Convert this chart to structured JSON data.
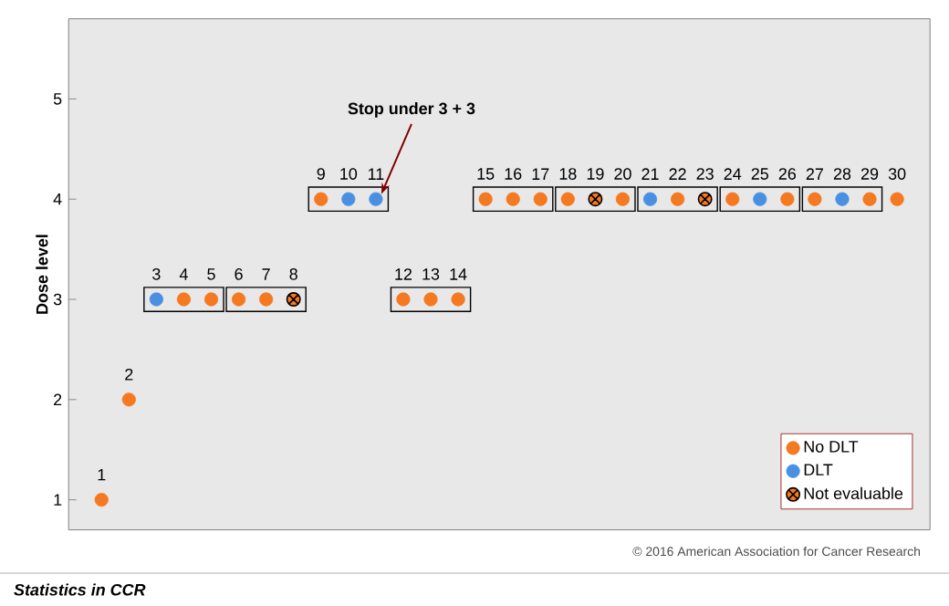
{
  "chart_data": {
    "type": "scatter",
    "ylabel": "Dose level",
    "ylim": [
      0.7,
      5.8
    ],
    "yticks": [
      1,
      2,
      3,
      4,
      5
    ],
    "grid": false,
    "legend": "bottom right",
    "tick_labels": "y",
    "marker": "circle",
    "categories": [
      "1",
      "2",
      "3",
      "4",
      "5",
      "6",
      "7",
      "8",
      "9",
      "10",
      "11",
      "12",
      "13",
      "14",
      "15",
      "16",
      "17",
      "18",
      "19",
      "20",
      "21",
      "22",
      "23",
      "24",
      "25",
      "26",
      "27",
      "28",
      "29",
      "30"
    ],
    "series": [
      {
        "name": "No DLT",
        "color": "#f47920",
        "values": [
          1,
          2,
          null,
          3,
          3,
          3,
          3,
          null,
          4,
          null,
          null,
          3,
          3,
          3,
          4,
          4,
          4,
          4,
          null,
          4,
          null,
          4,
          null,
          4,
          null,
          4,
          4,
          null,
          4,
          4
        ]
      },
      {
        "name": "DLT",
        "color": "#4a90e2",
        "values": [
          null,
          null,
          3,
          null,
          null,
          null,
          null,
          null,
          null,
          4,
          4,
          null,
          null,
          null,
          null,
          null,
          null,
          null,
          null,
          null,
          4,
          null,
          null,
          null,
          4,
          null,
          null,
          4,
          null,
          null
        ]
      },
      {
        "name": "Not evaluable",
        "color": "#f47920",
        "marker": "cross",
        "values": [
          null,
          null,
          null,
          null,
          null,
          null,
          null,
          3,
          null,
          null,
          null,
          null,
          null,
          null,
          null,
          null,
          null,
          null,
          4,
          null,
          null,
          null,
          4,
          null,
          null,
          null,
          null,
          null,
          null,
          null
        ]
      }
    ],
    "annotations": [
      {
        "text": "Stop under 3 + 3",
        "x": "11",
        "y": 4
      },
      "© 2016 American Association for Cancer Research",
      "Statistics in CCR"
    ]
  }
}
